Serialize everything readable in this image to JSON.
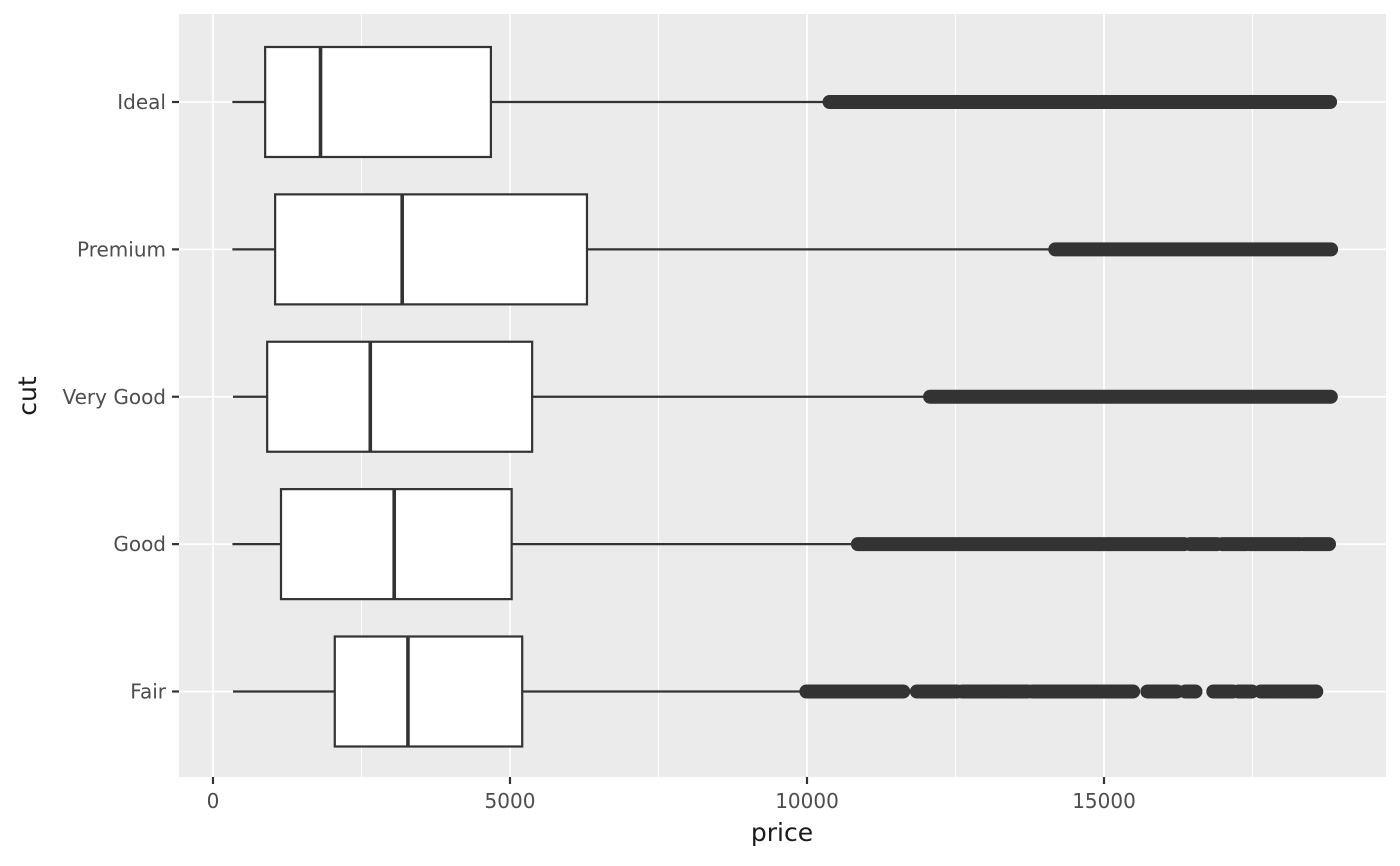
{
  "figure": {
    "background": "#FFFFFF",
    "panel_background": "#EBEBEB",
    "grid_color": "#FFFFFF",
    "box_fill": "#FFFFFF",
    "box_stroke": "#333333",
    "outlier_color": "#333333",
    "tick_mark_color": "#333333",
    "axis_text_color": "#4D4D4D",
    "axis_title_color": "#1A1A1A"
  },
  "chart_data": {
    "type": "boxplot",
    "orientation": "horizontal",
    "title": "",
    "xlabel": "price",
    "ylabel": "cut",
    "grid": true,
    "legend": false,
    "xlim": [
      -572,
      19747
    ],
    "x_major_ticks": [
      0,
      5000,
      10000,
      15000
    ],
    "x_major_tick_labels": [
      "0",
      "5000",
      "10000",
      "15000"
    ],
    "x_minor_ticks": [
      2500,
      7500,
      12500,
      17500
    ],
    "categories": [
      "Ideal",
      "Premium",
      "Very Good",
      "Good",
      "Fair"
    ],
    "series": [
      {
        "category": "Ideal",
        "whisker_low": 326,
        "q1": 878,
        "median": 1810,
        "q3": 4678.5,
        "whisker_high": 10372,
        "outlier_runs": [
          [
            10380,
            18806
          ]
        ],
        "outlier_points": []
      },
      {
        "category": "Premium",
        "whisker_low": 326,
        "q1": 1046,
        "median": 3185,
        "q3": 6296,
        "whisker_high": 14170,
        "outlier_runs": [
          [
            14180,
            18823
          ]
        ],
        "outlier_points": []
      },
      {
        "category": "Very Good",
        "whisker_low": 336,
        "q1": 912,
        "median": 2648,
        "q3": 5372.75,
        "whisker_high": 12063,
        "outlier_runs": [
          [
            12072,
            18818
          ]
        ],
        "outlier_points": []
      },
      {
        "category": "Good",
        "whisker_low": 327,
        "q1": 1145,
        "median": 3050.5,
        "q3": 5028,
        "whisker_high": 10851,
        "outlier_runs": [
          [
            10857,
            16350
          ],
          [
            16450,
            16900
          ],
          [
            16990,
            17400
          ],
          [
            17450,
            18300
          ],
          [
            18360,
            18788
          ]
        ],
        "outlier_points": []
      },
      {
        "category": "Fair",
        "whisker_low": 337,
        "q1": 2050.25,
        "median": 3282,
        "q3": 5205.5,
        "whisker_high": 9937,
        "outlier_runs": [
          [
            9990,
            11620
          ],
          [
            11850,
            12530
          ],
          [
            12610,
            13300
          ],
          [
            13340,
            13720
          ],
          [
            13790,
            15490
          ],
          [
            15730,
            16230
          ],
          [
            16370,
            16540
          ],
          [
            16840,
            17170
          ],
          [
            17260,
            17490
          ],
          [
            17640,
            17800
          ],
          [
            17840,
            18110
          ],
          [
            18140,
            18360
          ],
          [
            18390,
            18574
          ]
        ],
        "outlier_points": []
      }
    ]
  }
}
